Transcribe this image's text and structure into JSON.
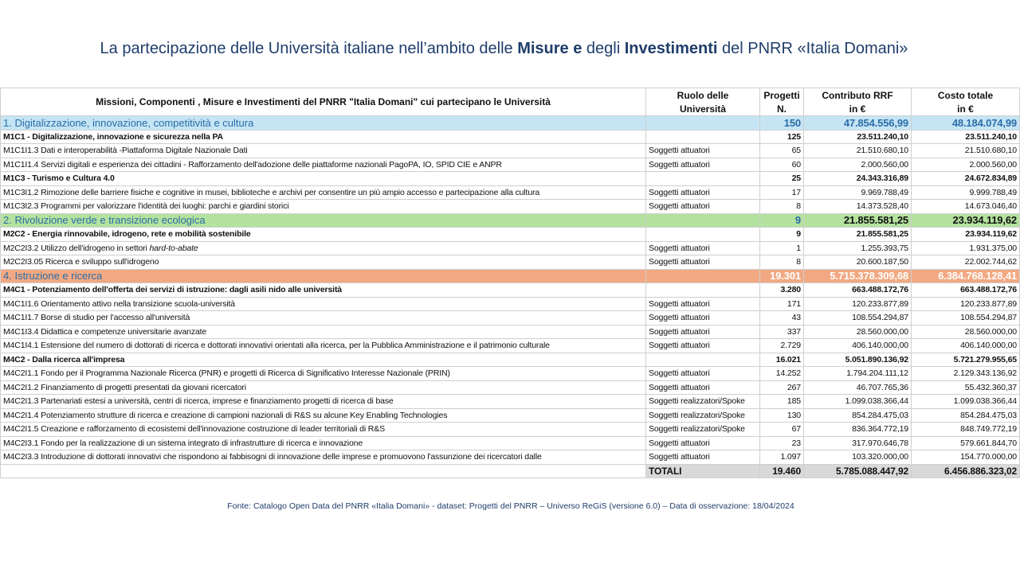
{
  "header": {
    "title_parts": [
      {
        "text": "La partecipazione delle Università italiane nell’ambito  delle ",
        "bold": false
      },
      {
        "text": "Misure e",
        "bold": true
      },
      {
        "text": " degli ",
        "bold": false
      },
      {
        "text": "Investimenti",
        "bold": true
      },
      {
        "text": " del PNRR «Italia Domani»",
        "bold": false
      }
    ]
  },
  "table": {
    "columns": [
      {
        "line1": "Missioni, Componenti , Misure e Investimenti del PNRR \"Italia Domani\" cui partecipano le Università"
      },
      {
        "line1": "Ruolo delle",
        "line2": "Università"
      },
      {
        "line1": "Progetti",
        "line2": "N."
      },
      {
        "line1": "Contributo RRF",
        "line2": "in €"
      },
      {
        "line1": "Costo totale",
        "line2": "in €"
      }
    ],
    "rows": [
      {
        "kind": "section",
        "color": "#c5e5f5",
        "label": "1. Digitalizzazione, innovazione, competitività e cultura",
        "progetti": "150",
        "contributo": "47.854.556,99",
        "costo": "48.184.074,99"
      },
      {
        "kind": "component",
        "label": "M1C1 - Digitalizzazione, innovazione e sicurezza nella PA",
        "progetti": "125",
        "contributo": "23.511.240,10",
        "costo": "23.511.240,10"
      },
      {
        "kind": "item",
        "label": "M1C1I1.3 Dati e interoperabilità -Piattaforma Digitale Nazionale Dati",
        "ruolo": "Soggetti attuatori",
        "progetti": "65",
        "contributo": "21.510.680,10",
        "costo": "21.510.680,10"
      },
      {
        "kind": "item",
        "label": "M1C1I1.4 Servizi digitali e esperienza dei cittadini - Rafforzamento dell'adozione delle piattaforme nazionali PagoPA, IO, SPID CIE e ANPR",
        "ruolo": "Soggetti attuatori",
        "progetti": "60",
        "contributo": "2.000.560,00",
        "costo": "2.000.560,00"
      },
      {
        "kind": "component",
        "label": "M1C3 - Turismo e Cultura 4.0",
        "progetti": "25",
        "contributo": "24.343.316,89",
        "costo": "24.672.834,89"
      },
      {
        "kind": "item",
        "label": "M1C3I1.2 Rimozione delle barriere fisiche e cognitive in musei, biblioteche e archivi per consentire un più ampio accesso e partecipazione alla cultura",
        "ruolo": "Soggetti attuatori",
        "progetti": "17",
        "contributo": "9.969.788,49",
        "costo": "9.999.788,49"
      },
      {
        "kind": "item",
        "label": "M1C3I2.3 Programmi per valorizzare l'identità dei luoghi: parchi e giardini storici",
        "ruolo": "Soggetti attuatori",
        "progetti": "8",
        "contributo": "14.373.528,40",
        "costo": "14.673.046,40"
      },
      {
        "kind": "section",
        "color": "#b4e29f",
        "num_color": "#111111",
        "label": "2. Rivoluzione verde e transizione ecologica",
        "progetti": "9",
        "contributo": "21.855.581,25",
        "costo": "23.934.119,62"
      },
      {
        "kind": "component",
        "label": "M2C2 - Energia rinnovabile, idrogeno, rete e mobilità sostenibile",
        "progetti": "9",
        "contributo": "21.855.581,25",
        "costo": "23.934.119,62"
      },
      {
        "kind": "item",
        "label": "M2C2I3.2 Utilizzo dell'idrogeno in settori ",
        "label_italic": "hard-to-abate",
        "ruolo": "Soggetti attuatori",
        "progetti": "1",
        "contributo": "1.255.393,75",
        "costo": "1.931.375,00"
      },
      {
        "kind": "item",
        "label": "M2C2I3.05 Ricerca e sviluppo sull'idrogeno",
        "ruolo": "Soggetti attuatori",
        "progetti": "8",
        "contributo": "20.600.187,50",
        "costo": "22.002.744,62"
      },
      {
        "kind": "section",
        "color": "#f2a983",
        "num_color": "#ffffff",
        "label": "4. Istruzione e ricerca",
        "progetti": "19.301",
        "contributo": "5.715.378.309,68",
        "costo": "6.384.768.128,41"
      },
      {
        "kind": "component",
        "label": "M4C1 - Potenziamento dell'offerta dei servizi di istruzione: dagli asili nido alle università",
        "progetti": "3.280",
        "contributo": "663.488.172,76",
        "costo": "663.488.172,76"
      },
      {
        "kind": "item",
        "label": "M4C1I1.6 Orientamento attivo nella transizione scuola-università",
        "ruolo": "Soggetti attuatori",
        "progetti": "171",
        "contributo": "120.233.877,89",
        "costo": "120.233.877,89"
      },
      {
        "kind": "item",
        "label": "M4C1I1.7 Borse di studio per l'accesso all'università",
        "ruolo": "Soggetti attuatori",
        "progetti": "43",
        "contributo": "108.554.294,87",
        "costo": "108.554.294,87"
      },
      {
        "kind": "item",
        "label": "M4C1I3.4  Didattica e competenze universitarie avanzate",
        "ruolo": "Soggetti attuatori",
        "progetti": "337",
        "contributo": "28.560.000,00",
        "costo": "28.560.000,00"
      },
      {
        "kind": "item",
        "label": "M4C1I4.1 Estensione del numero di dottorati di ricerca e dottorati innovativi orientati alla ricerca, per la Pubblica Amministrazione e il patrimonio culturale",
        "ruolo": "Soggetti attuatori",
        "progetti": "2.729",
        "contributo": "406.140.000,00",
        "costo": "406.140.000,00"
      },
      {
        "kind": "component",
        "label": "M4C2 - Dalla ricerca all'impresa",
        "progetti": "16.021",
        "contributo": "5.051.890.136,92",
        "costo": "5.721.279.955,65"
      },
      {
        "kind": "item",
        "label": "M4C2I1.1 Fondo per il Programma Nazionale Ricerca (PNR) e progetti di Ricerca di Significativo Interesse Nazionale (PRIN)",
        "ruolo": "Soggetti attuatori",
        "progetti": "14.252",
        "contributo": "1.794.204.111,12",
        "costo": "2.129.343.136,92"
      },
      {
        "kind": "item",
        "label": "M4C2I1.2  Finanziamento di progetti presentati da giovani ricercatori",
        "ruolo": "Soggetti attuatori",
        "progetti": "267",
        "contributo": "46.707.765,36",
        "costo": "55.432.360,37"
      },
      {
        "kind": "item",
        "label": "M4C2I1.3 Partenariati estesi a università, centri di ricerca, imprese e finanziamento progetti di ricerca di base",
        "ruolo": "Soggetti realizzatori/Spoke",
        "progetti": "185",
        "contributo": "1.099.038.366,44",
        "costo": "1.099.038.366,44"
      },
      {
        "kind": "item",
        "label": "M4C2I1.4 Potenziamento strutture di ricerca e creazione di campioni nazionali di R&S su alcune Key Enabling Technologies",
        "ruolo": "Soggetti realizzatori/Spoke",
        "progetti": "130",
        "contributo": "854.284.475,03",
        "costo": "854.284.475,03"
      },
      {
        "kind": "item",
        "label": "M4C2I1.5 Creazione e rafforzamento di ecosistemi dell'innovazione costruzione di leader territoriali di R&S",
        "ruolo": "Soggetti realizzatori/Spoke",
        "progetti": "67",
        "contributo": "836.364.772,19",
        "costo": "848.749.772,19"
      },
      {
        "kind": "item",
        "label": "M4C2I3.1 Fondo per la realizzazione di un sistema integrato di infrastrutture di ricerca e innovazione",
        "ruolo": "Soggetti attuatori",
        "progetti": "23",
        "contributo": "317.970.646,78",
        "costo": "579.661.844,70"
      },
      {
        "kind": "item",
        "label": "M4C2I3.3 Introduzione di dottorati innovativi che rispondono ai fabbisogni di innovazione delle imprese e promuovono l'assunzione dei ricercatori dalle",
        "ruolo": "Soggetti attuatori",
        "progetti": "1.097",
        "contributo": "103.320.000,00",
        "costo": "154.770.000,00"
      }
    ],
    "total": {
      "label": "TOTALI",
      "progetti": "19.460",
      "contributo": "5.785.088.447,92",
      "costo": "6.456.886.323,02"
    }
  },
  "footer": {
    "source": "Fonte: Catalogo Open Data del PNRR «Italia Domani» - dataset: Progetti del PNRR – Universo ReGiS (versione 6.0)  – Data di osservazione: 18/04/2024"
  }
}
